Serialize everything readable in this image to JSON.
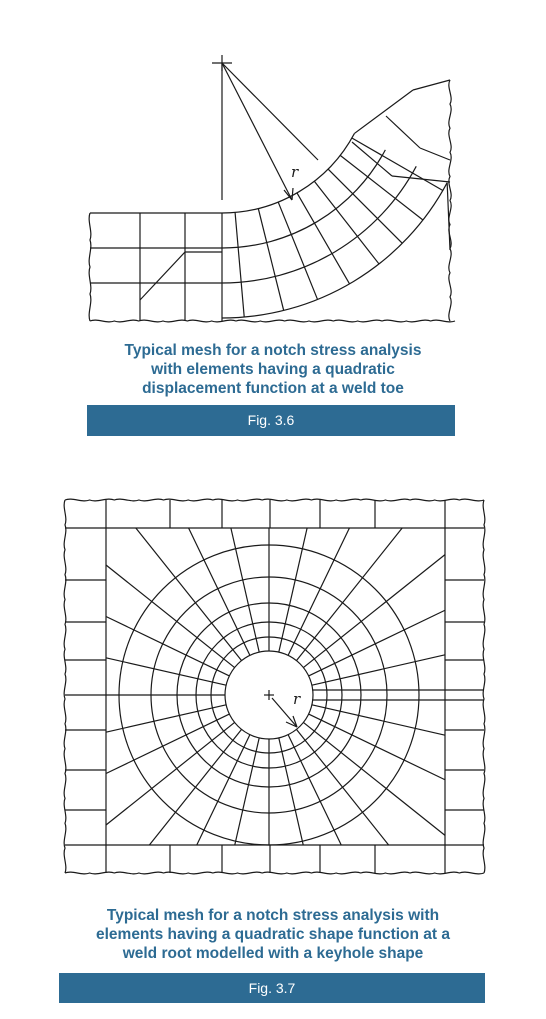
{
  "figures": [
    {
      "caption_lines": [
        "Typical mesh for a notch stress analysis",
        "with elements having a quadratic",
        "displacement function at a weld toe"
      ],
      "fig_label": "Fig. 3.6",
      "radius_label": "r"
    },
    {
      "caption_lines": [
        "Typical mesh for a notch stress analysis with",
        "elements having a quadratic shape function at a",
        "weld root modelled with a keyhole shape"
      ],
      "fig_label": "Fig. 3.7",
      "radius_label": "r"
    }
  ],
  "colors": {
    "caption_blue": "#2d6b93",
    "bar_blue": "#2d6b93",
    "line": "#1a1a1a"
  }
}
